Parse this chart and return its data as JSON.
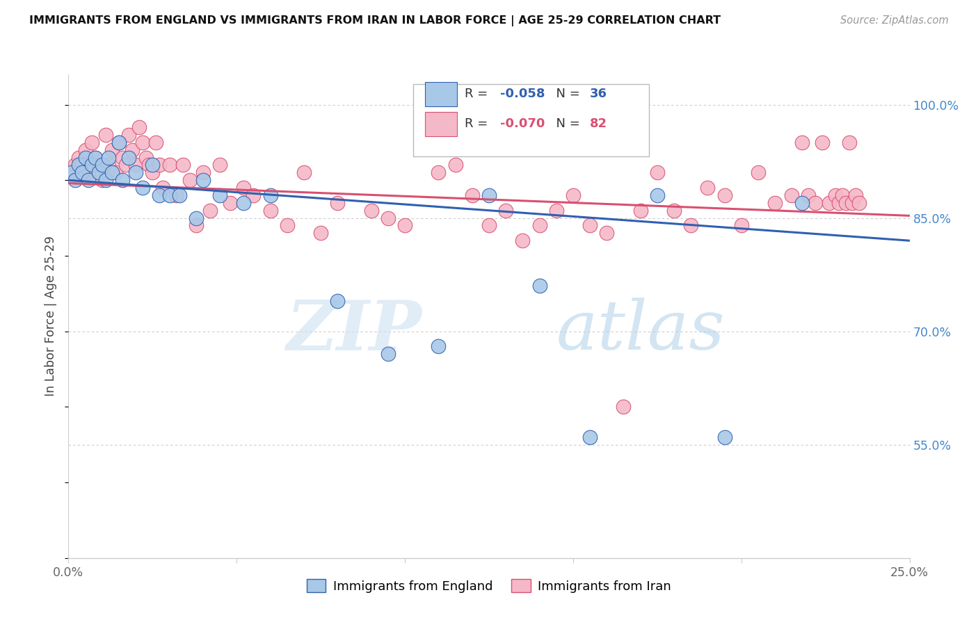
{
  "title": "IMMIGRANTS FROM ENGLAND VS IMMIGRANTS FROM IRAN IN LABOR FORCE | AGE 25-29 CORRELATION CHART",
  "source": "Source: ZipAtlas.com",
  "ylabel": "In Labor Force | Age 25-29",
  "xlim": [
    0.0,
    0.25
  ],
  "ylim": [
    0.4,
    1.04
  ],
  "yticks": [
    0.55,
    0.7,
    0.85,
    1.0
  ],
  "ytick_labels": [
    "55.0%",
    "70.0%",
    "85.0%",
    "100.0%"
  ],
  "xticks": [
    0.0,
    0.05,
    0.1,
    0.15,
    0.2,
    0.25
  ],
  "xtick_labels": [
    "0.0%",
    "",
    "",
    "",
    "",
    "25.0%"
  ],
  "legend_england": "Immigrants from England",
  "legend_iran": "Immigrants from Iran",
  "R_england": "-0.058",
  "N_england": "36",
  "R_iran": "-0.070",
  "N_iran": "82",
  "color_england": "#a8c8e8",
  "color_iran": "#f5b8c8",
  "line_color_england": "#3060b0",
  "line_color_iran": "#d85070",
  "eng_line_x0": 0.0,
  "eng_line_y0": 0.9,
  "eng_line_x1": 0.25,
  "eng_line_y1": 0.82,
  "iran_line_x0": 0.0,
  "iran_line_y0": 0.896,
  "iran_line_x1": 0.25,
  "iran_line_y1": 0.853,
  "england_x": [
    0.001,
    0.002,
    0.003,
    0.004,
    0.005,
    0.006,
    0.007,
    0.008,
    0.009,
    0.01,
    0.011,
    0.012,
    0.013,
    0.015,
    0.016,
    0.018,
    0.02,
    0.022,
    0.025,
    0.027,
    0.03,
    0.033,
    0.038,
    0.04,
    0.045,
    0.052,
    0.06,
    0.08,
    0.095,
    0.11,
    0.125,
    0.14,
    0.155,
    0.175,
    0.195,
    0.218
  ],
  "england_y": [
    0.91,
    0.9,
    0.92,
    0.91,
    0.93,
    0.9,
    0.92,
    0.93,
    0.91,
    0.92,
    0.9,
    0.93,
    0.91,
    0.95,
    0.9,
    0.93,
    0.91,
    0.89,
    0.92,
    0.88,
    0.88,
    0.88,
    0.85,
    0.9,
    0.88,
    0.87,
    0.88,
    0.74,
    0.67,
    0.68,
    0.88,
    0.76,
    0.56,
    0.88,
    0.56,
    0.87
  ],
  "iran_x": [
    0.001,
    0.002,
    0.003,
    0.004,
    0.005,
    0.006,
    0.007,
    0.008,
    0.009,
    0.01,
    0.011,
    0.012,
    0.013,
    0.014,
    0.015,
    0.016,
    0.017,
    0.018,
    0.019,
    0.02,
    0.021,
    0.022,
    0.023,
    0.024,
    0.025,
    0.026,
    0.027,
    0.028,
    0.03,
    0.032,
    0.034,
    0.036,
    0.038,
    0.04,
    0.042,
    0.045,
    0.048,
    0.052,
    0.055,
    0.06,
    0.065,
    0.07,
    0.075,
    0.08,
    0.09,
    0.095,
    0.1,
    0.11,
    0.115,
    0.12,
    0.125,
    0.13,
    0.135,
    0.14,
    0.145,
    0.15,
    0.155,
    0.16,
    0.165,
    0.17,
    0.175,
    0.18,
    0.185,
    0.19,
    0.195,
    0.2,
    0.205,
    0.21,
    0.215,
    0.218,
    0.22,
    0.222,
    0.224,
    0.226,
    0.228,
    0.229,
    0.23,
    0.231,
    0.232,
    0.233,
    0.234,
    0.235
  ],
  "iran_y": [
    0.91,
    0.92,
    0.93,
    0.92,
    0.94,
    0.91,
    0.95,
    0.93,
    0.92,
    0.9,
    0.96,
    0.92,
    0.94,
    0.91,
    0.95,
    0.93,
    0.92,
    0.96,
    0.94,
    0.92,
    0.97,
    0.95,
    0.93,
    0.92,
    0.91,
    0.95,
    0.92,
    0.89,
    0.92,
    0.88,
    0.92,
    0.9,
    0.84,
    0.91,
    0.86,
    0.92,
    0.87,
    0.89,
    0.88,
    0.86,
    0.84,
    0.91,
    0.83,
    0.87,
    0.86,
    0.85,
    0.84,
    0.91,
    0.92,
    0.88,
    0.84,
    0.86,
    0.82,
    0.84,
    0.86,
    0.88,
    0.84,
    0.83,
    0.6,
    0.86,
    0.91,
    0.86,
    0.84,
    0.89,
    0.88,
    0.84,
    0.91,
    0.87,
    0.88,
    0.95,
    0.88,
    0.87,
    0.95,
    0.87,
    0.88,
    0.87,
    0.88,
    0.87,
    0.95,
    0.87,
    0.88,
    0.87
  ],
  "watermark_zip": "ZIP",
  "watermark_atlas": "atlas",
  "background_color": "#ffffff",
  "grid_color": "#cccccc",
  "title_color": "#111111",
  "source_color": "#999999",
  "axis_label_color": "#444444",
  "tick_color_x": "#666666",
  "tick_color_y_right": "#4488cc"
}
